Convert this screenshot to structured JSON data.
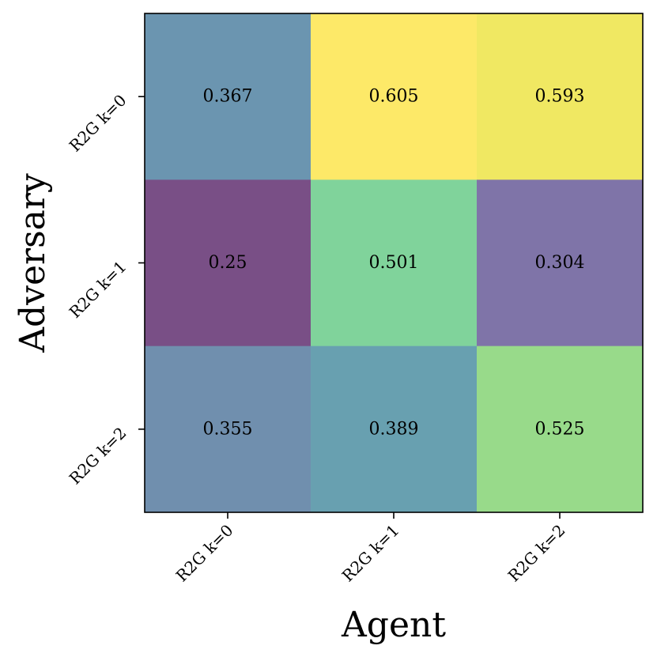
{
  "chart_data": {
    "type": "heatmap",
    "x_categories": [
      "R2G k=0",
      "R2G k=1",
      "R2G k=2"
    ],
    "y_categories": [
      "R2G k=0",
      "R2G k=1",
      "R2G k=2"
    ],
    "values": [
      [
        0.367,
        0.605,
        0.593
      ],
      [
        0.25,
        0.501,
        0.304
      ],
      [
        0.355,
        0.389,
        0.525
      ]
    ],
    "cell_labels": [
      [
        "0.367",
        "0.605",
        "0.593"
      ],
      [
        "0.25",
        "0.501",
        "0.304"
      ],
      [
        "0.355",
        "0.389",
        "0.525"
      ]
    ],
    "xlabel": "Agent",
    "ylabel": "Adversary",
    "colormap": "viridis",
    "cell_colors": [
      [
        "#6b95b0",
        "#fde968",
        "#f0e862"
      ],
      [
        "#794f86",
        "#80d39b",
        "#7f74a8"
      ],
      [
        "#708fae",
        "#68a0b0",
        "#98da8a"
      ]
    ],
    "grid": false
  }
}
